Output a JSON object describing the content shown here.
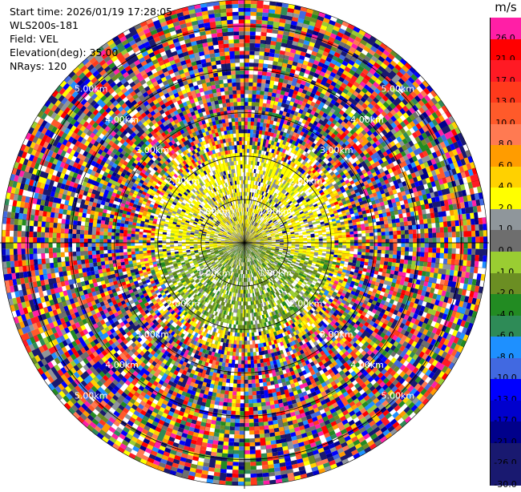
{
  "info": {
    "start_time": "Start time: 2026/01/19 17:28:05",
    "instrument": "WLS200s-181",
    "field": "Field: VEL",
    "elevation": "Elevation(deg): 35.00",
    "nrays": "NRays: 120"
  },
  "colorbar": {
    "unit": "m/s",
    "levels": [
      {
        "label": "26.0",
        "color": "#ff1fa6"
      },
      {
        "label": "21.0",
        "color": "#ff0000"
      },
      {
        "label": "17.0",
        "color": "#ff1a24"
      },
      {
        "label": "13.0",
        "color": "#ff3a1c"
      },
      {
        "label": "10.0",
        "color": "#ff5a2a"
      },
      {
        "label": "8.0",
        "color": "#ff7a52"
      },
      {
        "label": "6.0",
        "color": "#ff9c00"
      },
      {
        "label": "4.0",
        "color": "#ffd100"
      },
      {
        "label": "2.0",
        "color": "#ffff00"
      },
      {
        "label": "1.0",
        "color": "#8f969b"
      },
      {
        "label": "0.0",
        "color": "#6e6e6e"
      },
      {
        "label": "-1.0",
        "color": "#9acd32"
      },
      {
        "label": "-2.0",
        "color": "#6b8e23"
      },
      {
        "label": "-4.0",
        "color": "#228b22"
      },
      {
        "label": "-6.0",
        "color": "#2e8b57"
      },
      {
        "label": "-8.0",
        "color": "#1e90ff"
      },
      {
        "label": "-10.0",
        "color": "#4169e1"
      },
      {
        "label": "-13.0",
        "color": "#0000ff"
      },
      {
        "label": "-17.0",
        "color": "#0000cd"
      },
      {
        "label": "-21.0",
        "color": "#00008b"
      },
      {
        "label": "-26.0",
        "color": "#191970"
      },
      {
        "label": "-30.0",
        "color": "#191970"
      }
    ]
  },
  "range_rings": [
    {
      "label": "1.00km",
      "km": 1
    },
    {
      "label": "2.00km",
      "km": 2
    },
    {
      "label": "3.00km",
      "km": 3
    },
    {
      "label": "4.00km",
      "km": 4
    },
    {
      "label": "5.00km",
      "km": 5
    }
  ],
  "max_range_km": 5.6,
  "nrays": 120
}
